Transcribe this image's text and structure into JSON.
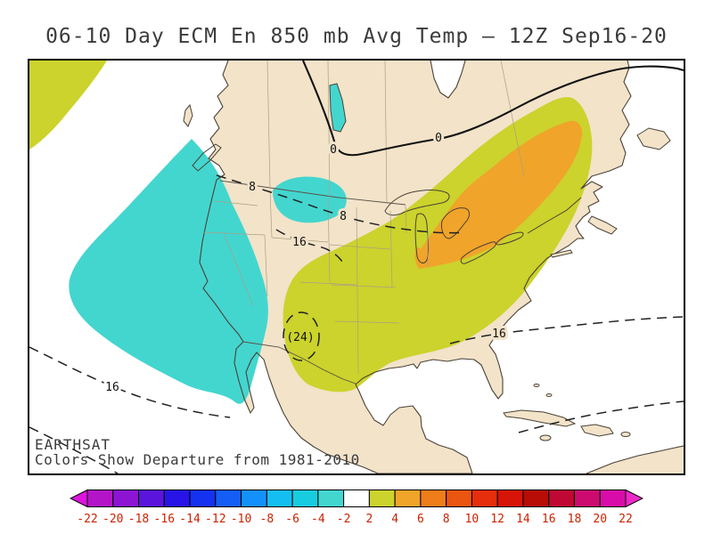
{
  "title": "06-10 Day ECM En 850 mb Avg Temp — 12Z Sep16-20",
  "map": {
    "credit": "EARTHSAT",
    "caption": "Colors Show Departure from 1981-2010",
    "contour_labels": [
      "0",
      "0",
      "8",
      "8",
      "16",
      "(24)",
      "16",
      "16"
    ],
    "regions": {
      "cold": "Cyan: negative 850mb temp departure over western U.S. and eastern Pacific",
      "warm": "Yellow: positive departure over central and eastern U.S.",
      "warmer": "Orange: stronger positive departure over Great Lakes and Northeast",
      "nw_ocean": "Yellow: positive departure patch, northwest corner of map"
    }
  },
  "colors": {
    "ocean": "#ffffff",
    "land": "#f2e3c9",
    "cold_anomaly": "#43d6cf",
    "warm_anomaly": "#cbd32c",
    "warm_anomaly_2": "#f0a42a",
    "coastline": "#4a4238",
    "state_border": "#ab9f85"
  },
  "colorbar": {
    "tick_labels": [
      "-22",
      "-20",
      "-18",
      "-16",
      "-14",
      "-12",
      "-10",
      "-8",
      "-6",
      "-4",
      "-2",
      "2",
      "4",
      "6",
      "8",
      "10",
      "12",
      "14",
      "16",
      "18",
      "20",
      "22"
    ],
    "segment_colors": [
      "#b414c8",
      "#8c14d2",
      "#5a14dc",
      "#2814e6",
      "#1432f0",
      "#145ef6",
      "#1490fa",
      "#14bef2",
      "#18cce0",
      "#43d6cf",
      "#ffffff",
      "#cbd32c",
      "#f0a42a",
      "#ee7d1a",
      "#ea5510",
      "#e42e0c",
      "#d61408",
      "#b80c06",
      "#c00834",
      "#cc0a70",
      "#d80ca8"
    ],
    "arrow_left_color": "#dc14dc",
    "arrow_right_color": "#ee28c8",
    "label_color": "#cc2200"
  }
}
